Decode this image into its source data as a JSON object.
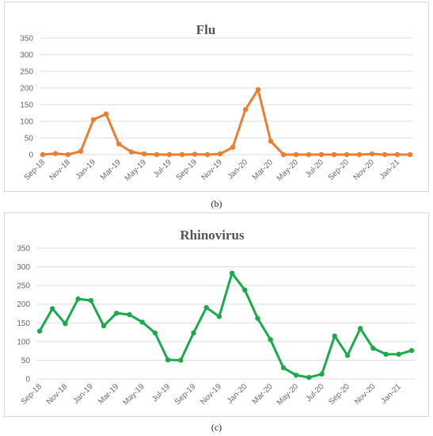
{
  "captions": {
    "b": "(b)",
    "c": "(c)"
  },
  "chart_data": [
    {
      "type": "line",
      "title": "Flu",
      "color": "#ed7d31",
      "grid": true,
      "ylim": [
        0,
        350
      ],
      "yticks": [
        0,
        50,
        100,
        150,
        200,
        250,
        300,
        350
      ],
      "x_tick_labels": [
        "Sep-18",
        "Nov-18",
        "Jan-19",
        "Mar-19",
        "May-19",
        "Jul-19",
        "Sep-19",
        "Nov-19",
        "Jan-20",
        "Mar-20",
        "May-20",
        "Jul-20",
        "Sep-20",
        "Nov-20",
        "Jan-21"
      ],
      "x": [
        "Sep-18",
        "Oct-18",
        "Nov-18",
        "Dec-18",
        "Jan-19",
        "Feb-19",
        "Mar-19",
        "Apr-19",
        "May-19",
        "Jun-19",
        "Jul-19",
        "Aug-19",
        "Sep-19",
        "Oct-19",
        "Nov-19",
        "Dec-19",
        "Jan-20",
        "Feb-20",
        "Mar-20",
        "Apr-20",
        "May-20",
        "Jun-20",
        "Jul-20",
        "Aug-20",
        "Sep-20",
        "Oct-20",
        "Nov-20",
        "Dec-20",
        "Jan-21",
        "Feb-21"
      ],
      "values": [
        0,
        3,
        0,
        10,
        105,
        122,
        32,
        8,
        2,
        0,
        0,
        0,
        1,
        0,
        2,
        22,
        135,
        195,
        40,
        0,
        0,
        0,
        0,
        0,
        0,
        0,
        2,
        0,
        0,
        0
      ]
    },
    {
      "type": "line",
      "title": "Rhinovirus",
      "color": "#1aaa4b",
      "grid": true,
      "ylim": [
        0,
        350
      ],
      "yticks": [
        0,
        50,
        100,
        150,
        200,
        250,
        300,
        350
      ],
      "x_tick_labels": [
        "Sep-18",
        "Nov-18",
        "Jan-19",
        "Mar-19",
        "May-19",
        "Jul-19",
        "Sep-19",
        "Nov-19",
        "Jan-20",
        "Mar-20",
        "May-20",
        "Jul-20",
        "Sep-20",
        "Nov-20",
        "Jan-21"
      ],
      "x": [
        "Sep-18",
        "Oct-18",
        "Nov-18",
        "Dec-18",
        "Jan-19",
        "Feb-19",
        "Mar-19",
        "Apr-19",
        "May-19",
        "Jun-19",
        "Jul-19",
        "Aug-19",
        "Sep-19",
        "Oct-19",
        "Nov-19",
        "Dec-19",
        "Jan-20",
        "Feb-20",
        "Mar-20",
        "Apr-20",
        "May-20",
        "Jun-20",
        "Jul-20",
        "Aug-20",
        "Sep-20",
        "Oct-20",
        "Nov-20",
        "Dec-20",
        "Jan-21",
        "Feb-21"
      ],
      "values": [
        128,
        188,
        148,
        214,
        210,
        142,
        176,
        172,
        152,
        123,
        51,
        50,
        123,
        191,
        167,
        283,
        238,
        162,
        105,
        30,
        10,
        4,
        13,
        115,
        63,
        135,
        82,
        66,
        66,
        76
      ]
    }
  ]
}
